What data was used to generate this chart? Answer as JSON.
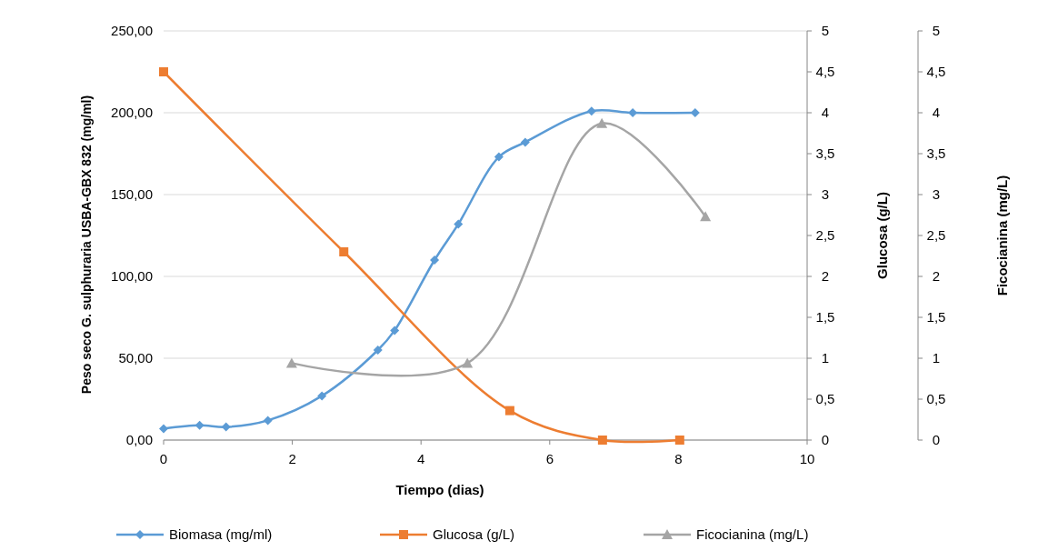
{
  "chart_data": {
    "type": "line",
    "xlabel": "Tiempo (dias)",
    "ylabel": "Peso seco G. sulphuraria USBA-GBX 832 (mg/ml)",
    "y2label": "Glucosa  (g/L)",
    "y3label": "Ficocianina  (mg/L)",
    "xlim": [
      0,
      10
    ],
    "xticks": [
      0,
      2,
      4,
      6,
      8,
      10
    ],
    "ylim": [
      0,
      250
    ],
    "yticks": [
      {
        "value": 0,
        "label": "0,00"
      },
      {
        "value": 50,
        "label": "50,00"
      },
      {
        "value": 100,
        "label": "100,00"
      },
      {
        "value": 150,
        "label": "150,00"
      },
      {
        "value": 200,
        "label": "200,00"
      },
      {
        "value": 250,
        "label": "250,00"
      }
    ],
    "y2lim": [
      0,
      5
    ],
    "y2ticks": [
      0,
      {
        "value": 0.5,
        "label": "0,5"
      },
      1,
      {
        "value": 1.5,
        "label": "1,5"
      },
      2,
      {
        "value": 2.5,
        "label": "2,5"
      },
      3,
      {
        "value": 3.5,
        "label": "3,5"
      },
      4,
      {
        "value": 4.5,
        "label": "4,5"
      },
      5
    ],
    "y3lim": [
      0,
      5
    ],
    "y3ticks": [
      0,
      {
        "value": 0.5,
        "label": "0,5"
      },
      1,
      {
        "value": 1.5,
        "label": "1,5"
      },
      2,
      {
        "value": 2.5,
        "label": "2,5"
      },
      3,
      {
        "value": 3.5,
        "label": "3,5"
      },
      4,
      {
        "value": 4.5,
        "label": "4,5"
      },
      5
    ],
    "grid": "y",
    "legend": "bottom",
    "series": [
      {
        "name": "Biomasa (mg/ml)",
        "color": "#5b9bd5",
        "marker": "diamond",
        "x": [
          0,
          0.56,
          0.97,
          1.62,
          2.46,
          3.33,
          3.59,
          4.21,
          4.58,
          5.21,
          5.62,
          6.65,
          7.29,
          8.26
        ],
        "values": [
          7,
          9,
          8,
          12,
          27,
          55,
          67,
          110,
          132,
          173,
          182,
          201,
          200,
          200
        ]
      },
      {
        "name": "Glucosa (g/L)",
        "color": "#ed7d31",
        "marker": "square",
        "axis": "y2",
        "x": [
          0,
          2.8,
          5.38,
          6.82,
          8.02
        ],
        "values": [
          4.5,
          2.3,
          0.36,
          0,
          0
        ]
      },
      {
        "name": "Ficocianina (mg/L)",
        "color": "#a5a5a5",
        "marker": "triangle",
        "axis": "y3",
        "x": [
          1.99,
          4.72,
          6.81,
          8.42
        ],
        "values": [
          0.94,
          0.94,
          3.87,
          2.73
        ]
      }
    ]
  }
}
